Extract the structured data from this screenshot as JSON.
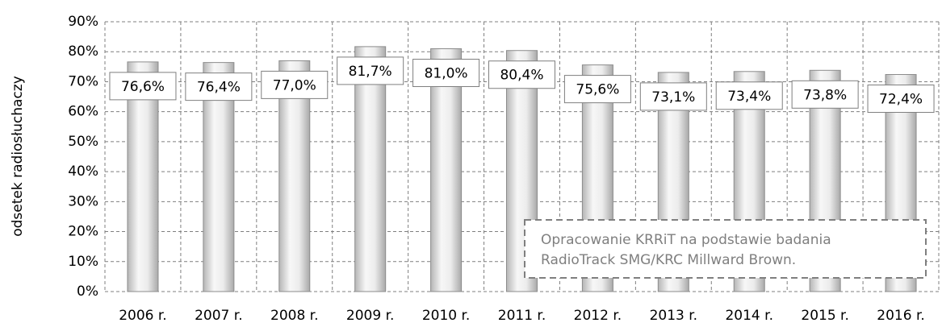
{
  "chart_data": {
    "type": "bar",
    "y_label": "odsetek radiosłuchaczy",
    "categories": [
      "2006 r.",
      "2007 r.",
      "2008 r.",
      "2009 r.",
      "2010 r.",
      "2011 r.",
      "2012 r.",
      "2013 r.",
      "2014 r.",
      "2015 r.",
      "2016 r."
    ],
    "values": [
      76.6,
      76.4,
      77.0,
      81.7,
      81.0,
      80.4,
      75.6,
      73.1,
      73.4,
      73.8,
      72.4
    ],
    "value_labels": [
      "76,6%",
      "76,4%",
      "77,0%",
      "81,7%",
      "81,0%",
      "80,4%",
      "75,6%",
      "73,1%",
      "73,4%",
      "73,8%",
      "72,4%"
    ],
    "color": "#d9d9d9",
    "ylim": [
      0,
      90
    ],
    "yticks": [
      {
        "value": 0,
        "label": "0%"
      },
      {
        "value": 10,
        "label": "10%"
      },
      {
        "value": 20,
        "label": "20%"
      },
      {
        "value": 30,
        "label": "30%"
      },
      {
        "value": 40,
        "label": "40%"
      },
      {
        "value": 50,
        "label": "50%"
      },
      {
        "value": 60,
        "label": "60%"
      },
      {
        "value": 70,
        "label": "70%"
      },
      {
        "value": 80,
        "label": "80%"
      },
      {
        "value": 90,
        "label": "90%"
      }
    ],
    "grid": true,
    "annotation": [
      "Opracowanie KRRiT na podstawie badania",
      "RadioTrack SMG/KRC Millward Brown."
    ]
  }
}
